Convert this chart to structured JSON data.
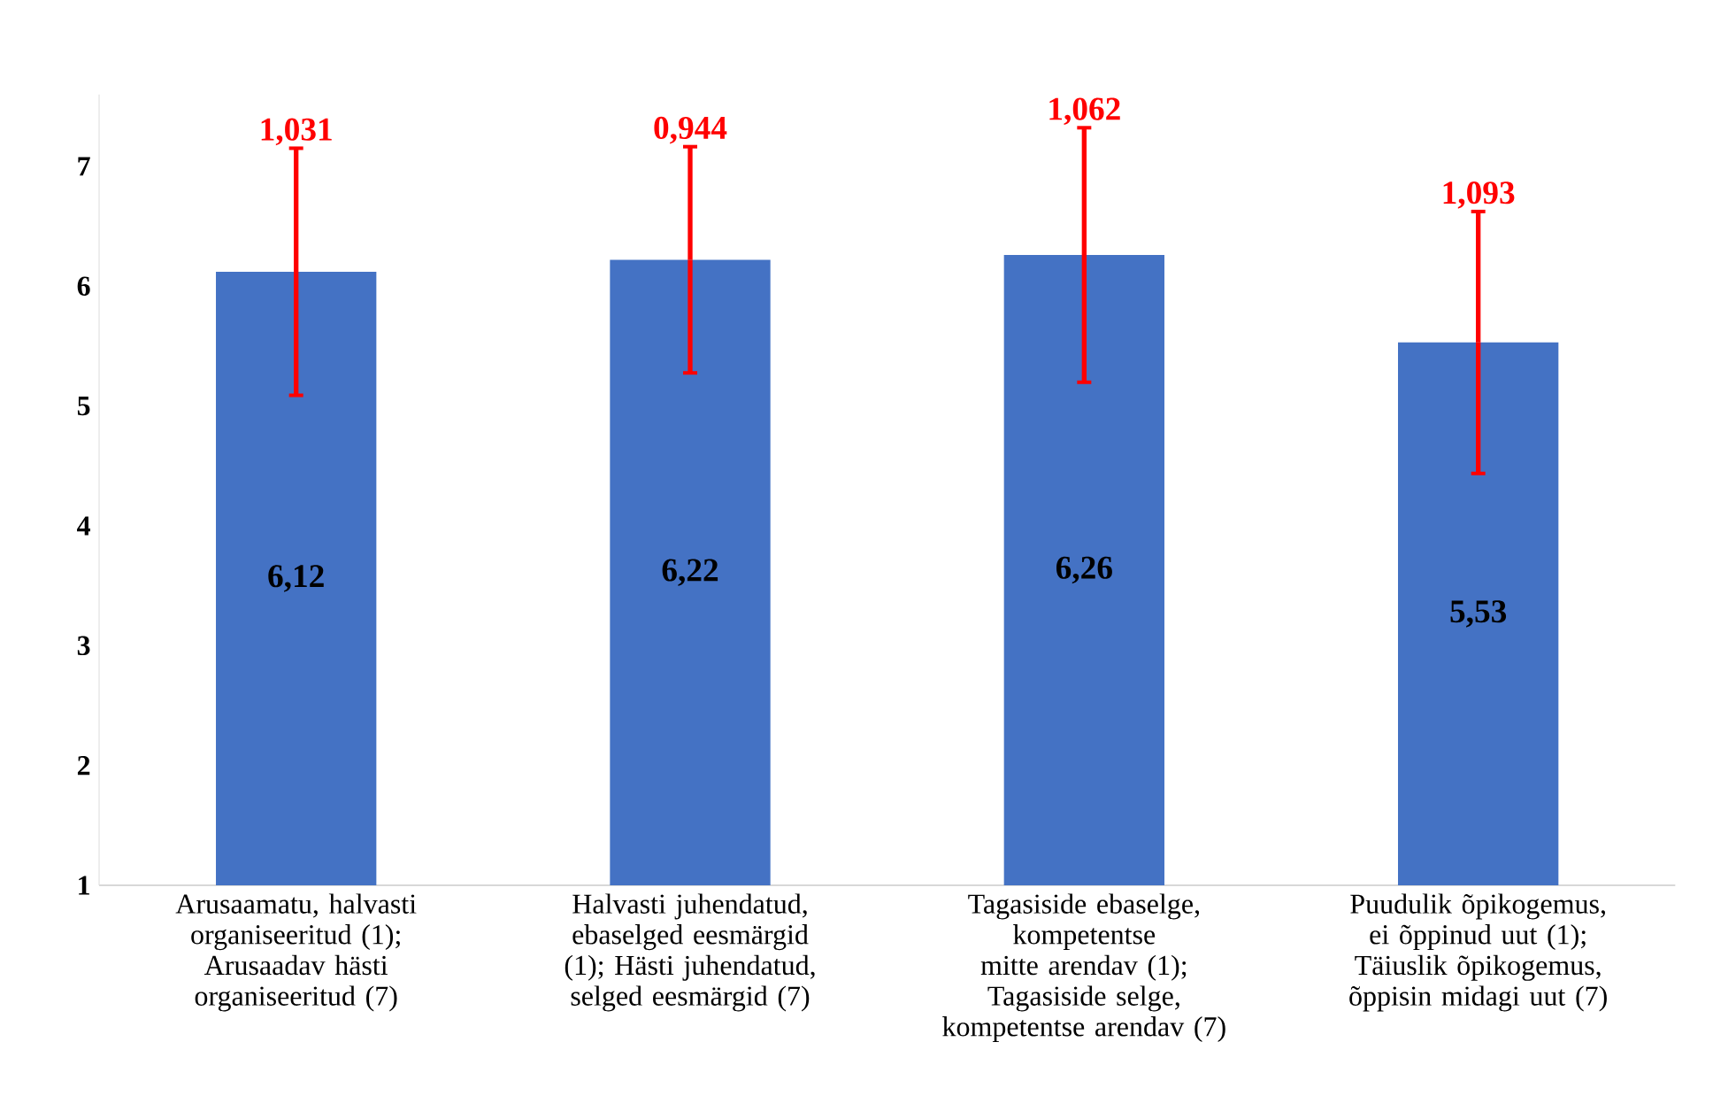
{
  "chart_data": {
    "type": "bar",
    "categories": [
      "Arusaamatu, halvasti organiseeritud (1); Arusaadav hästi organiseeritud (7)",
      "Halvasti juhendatud, ebaselged eesmärgid (1); Hästi juhendatud, selged eesmärgid (7)",
      "Tagasiside ebaselge, kompetentse mitte arendav (1); Tagasiside selge, kompetentse arendav (7)",
      "Puudulik õpikogemus, ei õppinud uut (1); Täiuslik õpikogemus, õppisin midagi uut (7)"
    ],
    "values": [
      6.12,
      6.22,
      6.26,
      5.53
    ],
    "value_labels": [
      "6,12",
      "6,22",
      "6,26",
      "5,53"
    ],
    "errors": [
      1.031,
      0.944,
      1.062,
      1.093
    ],
    "color": "#4472c4",
    "annotations": [
      {
        "text": "1,031",
        "y": 7.151
      },
      {
        "text": "0,944",
        "y": 7.164
      },
      {
        "text": "1,062",
        "y": 7.322
      },
      {
        "text": "1,093",
        "y": 6.623
      }
    ],
    "ylim": [
      1,
      7.6
    ],
    "yticks": [
      1,
      2,
      3,
      4,
      5,
      6,
      7
    ]
  }
}
